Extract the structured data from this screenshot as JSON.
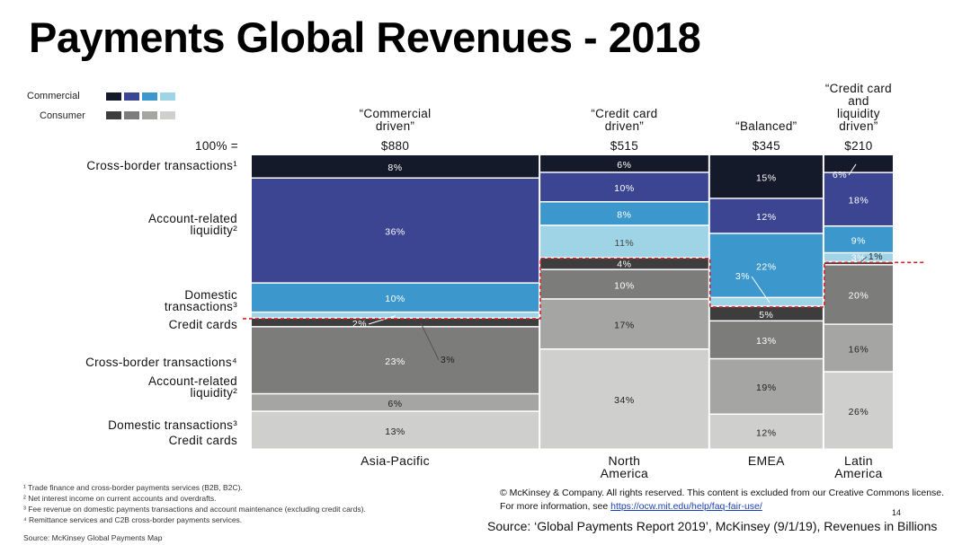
{
  "title": "Payments Global Revenues - 2018",
  "legend": {
    "commercial_label": "Commercial",
    "consumer_label": "Consumer",
    "commercial_colors": [
      "#151a2a",
      "#3b4592",
      "#3c98cc",
      "#9fd3e6"
    ],
    "consumer_colors": [
      "#3d3d3d",
      "#7c7c7a",
      "#a5a5a3",
      "#cfcfcd"
    ]
  },
  "total_label": "100% =",
  "row_labels": {
    "c_cross": "Cross-border transactions¹",
    "c_account_1": "Account-related",
    "c_account_2": "liquidity²",
    "c_domestic_1": "Domestic",
    "c_domestic_2": "transactions³",
    "c_credit": "Credit cards",
    "k_cross": "Cross-border transactions⁴",
    "k_account_1": "Account-related",
    "k_account_2": "liquidity²",
    "k_domestic": "Domestic transactions³",
    "k_credit": "Credit cards"
  },
  "columns": [
    {
      "header_lines": [
        "“Commercial",
        "driven”"
      ],
      "total": "$880",
      "region_lines": [
        "Asia-Pacific"
      ]
    },
    {
      "header_lines": [
        "“Credit card",
        "driven”"
      ],
      "total": "$515",
      "region_lines": [
        "North",
        "America"
      ]
    },
    {
      "header_lines": [
        "“Balanced”"
      ],
      "total": "$345",
      "region_lines": [
        "EMEA"
      ]
    },
    {
      "header_lines": [
        "“Credit card",
        "and",
        "liquidity",
        "driven”"
      ],
      "total": "$210",
      "region_lines": [
        "Latin",
        "America"
      ]
    }
  ],
  "chart_data": {
    "type": "marimekko",
    "units": "percent of regional revenue; column width = revenue in $ billions",
    "segments": [
      "Commercial: Cross-border transactions",
      "Commercial: Account-related liquidity",
      "Commercial: Domestic transactions",
      "Commercial: Credit cards",
      "Consumer: Cross-border transactions",
      "Consumer: Account-related liquidity",
      "Consumer: Domestic transactions",
      "Consumer: Credit cards"
    ],
    "categories": [
      "Asia-Pacific",
      "North America",
      "EMEA",
      "Latin America"
    ],
    "totals": [
      880,
      515,
      345,
      210
    ],
    "values": [
      [
        8,
        36,
        10,
        2,
        3,
        23,
        6,
        13
      ],
      [
        6,
        10,
        8,
        11,
        4,
        10,
        17,
        34
      ],
      [
        15,
        12,
        22,
        3,
        5,
        13,
        19,
        12
      ],
      [
        6,
        18,
        9,
        3,
        1,
        20,
        16,
        26
      ]
    ],
    "labels": [
      [
        "8%",
        "36%",
        "10%",
        "2%",
        "3%",
        "23%",
        "6%",
        "13%"
      ],
      [
        "6%",
        "10%",
        "8%",
        "11%",
        "4%",
        "10%",
        "17%",
        "34%"
      ],
      [
        "15%",
        "12%",
        "22%",
        "3%",
        "5%",
        "13%",
        "19%",
        "12%"
      ],
      [
        "6%",
        "18%",
        "9%",
        "3%",
        "1%",
        "20%",
        "16%",
        "26%"
      ]
    ]
  },
  "footnotes": [
    "¹ Trade finance and cross-border payments services (B2B, B2C).",
    "² Net interest income on current accounts and overdrafts.",
    "³ Fee revenue on domestic payments transactions and account maintenance (excluding credit cards).",
    "⁴ Remittance services and C2B cross-border payments services."
  ],
  "chart_source": "Source: McKinsey Global Payments Map",
  "notice_line1": "© McKinsey & Company. All rights reserved. This content is excluded from our Creative Commons license.",
  "notice_line2_prefix": "For more information, see ",
  "notice_link": "https://ocw.mit.edu/help/faq-fair-use/",
  "page_number": "14",
  "source": "Source: ‘Global Payments Report 2019’, McKinsey (9/1/19), Revenues in Billions"
}
